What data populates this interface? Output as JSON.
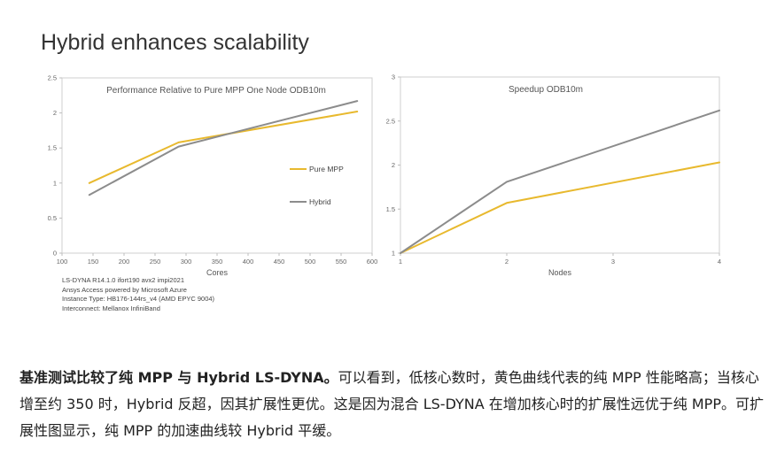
{
  "slide_title": "Hybrid enhances scalability",
  "chart_data": [
    {
      "type": "line",
      "title": "Performance Relative to Pure MPP One Node ODB10m",
      "xlabel": "Cores",
      "ylabel": "",
      "xlim": [
        100,
        600
      ],
      "ylim": [
        0,
        2.5
      ],
      "x_ticks": [
        100,
        150,
        200,
        250,
        300,
        350,
        400,
        450,
        500,
        550,
        600
      ],
      "y_ticks": [
        0,
        0.5,
        1,
        1.5,
        2,
        2.5
      ],
      "series": [
        {
          "name": "Pure MPP",
          "color": "#e8b92e",
          "x": [
            144,
            288,
            576
          ],
          "values": [
            1.0,
            1.58,
            2.02
          ]
        },
        {
          "name": "Hybrid",
          "color": "#8c8c8c",
          "x": [
            144,
            288,
            576
          ],
          "values": [
            0.83,
            1.52,
            2.17
          ]
        }
      ],
      "legend": [
        "Pure MPP",
        "Hybrid"
      ],
      "legend_position": "right"
    },
    {
      "type": "line",
      "title": "Speedup ODB10m",
      "xlabel": "Nodes",
      "ylabel": "",
      "xlim": [
        1,
        4
      ],
      "ylim": [
        1,
        3
      ],
      "x_ticks": [
        1,
        2,
        3,
        4
      ],
      "y_ticks": [
        1,
        1.5,
        2,
        2.5,
        3
      ],
      "series": [
        {
          "name": "Pure MPP",
          "color": "#e8b92e",
          "x": [
            1,
            2,
            4
          ],
          "values": [
            1.0,
            1.57,
            2.03
          ]
        },
        {
          "name": "Hybrid",
          "color": "#8c8c8c",
          "x": [
            1,
            2,
            4
          ],
          "values": [
            1.0,
            1.81,
            2.62
          ]
        }
      ]
    }
  ],
  "footnote": [
    "LS-DYNA R14.1.0 ifort190 avx2 impi2021",
    "Ansys Access powered by Microsoft Azure",
    "Instance Type: HB176-144rs_v4 (AMD EPYC 9004)",
    "Interconnect: Mellanox InfiniBand"
  ],
  "caption": {
    "bold": "基准测试比较了纯 MPP 与 Hybrid LS-DYNA。",
    "text": "可以看到，低核心数时，黄色曲线代表的纯 MPP 性能略高；当核心增至约 350 时，Hybrid 反超，因其扩展性更优。这是因为混合 LS-DYNA 在增加核心时的扩展性远优于纯 MPP。可扩展性图显示，纯 MPP 的加速曲线较 Hybrid 平缓。"
  }
}
